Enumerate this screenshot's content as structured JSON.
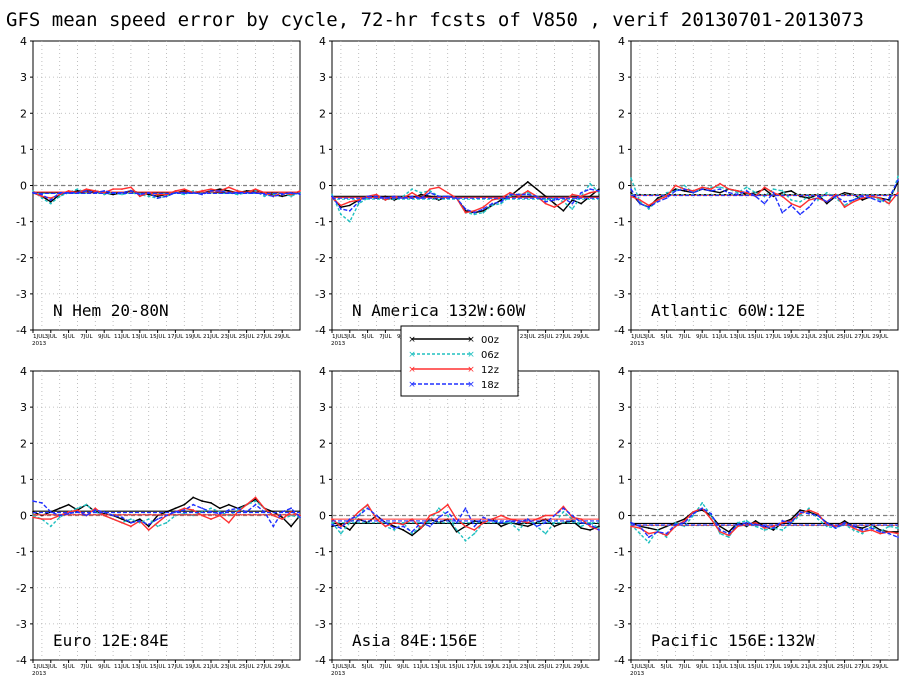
{
  "title": "GFS mean speed error by cycle, 72-hr fcsts of V850 , verif 20130701-2013073",
  "chart_data": {
    "type": "line",
    "ylim": [
      -4,
      4
    ],
    "yticks": [
      -4,
      -3,
      -2,
      -1,
      0,
      1,
      2,
      3,
      4
    ],
    "xlim": [
      1,
      31
    ],
    "xtick_labels": [
      "1JUL",
      "3JUL",
      "5JUL",
      "7JUL",
      "9JUL",
      "11JUL",
      "13JUL",
      "15JUL",
      "17JUL",
      "19JUL",
      "21JUL",
      "23JUL",
      "25JUL",
      "27JUL",
      "29JUL"
    ],
    "xtick_year": "2013",
    "grid": true,
    "legend_position": "center-between-top-and-bottom-rows",
    "series_meta": [
      {
        "name": "00z",
        "color": "#000000",
        "dash": "none",
        "mean_dash": "none"
      },
      {
        "name": "06z",
        "color": "#20c0c0",
        "dash": "3,2",
        "mean_dash": "3,2"
      },
      {
        "name": "12z",
        "color": "#ff3030",
        "dash": "none",
        "mean_dash": "none"
      },
      {
        "name": "18z",
        "color": "#2030ff",
        "dash": "4,2",
        "mean_dash": "4,2"
      }
    ],
    "panels": [
      {
        "region": "N Hem 20-80N",
        "series": [
          {
            "name": "00z",
            "values": [
              -0.2,
              -0.3,
              -0.45,
              -0.25,
              -0.2,
              -0.15,
              -0.15,
              -0.15,
              -0.2,
              -0.25,
              -0.2,
              -0.15,
              -0.2,
              -0.25,
              -0.3,
              -0.25,
              -0.2,
              -0.15,
              -0.2,
              -0.2,
              -0.15,
              -0.1,
              -0.15,
              -0.2,
              -0.15,
              -0.15,
              -0.2,
              -0.25,
              -0.3,
              -0.25,
              -0.2
            ],
            "mean": -0.2
          },
          {
            "name": "06z",
            "values": [
              -0.15,
              -0.35,
              -0.5,
              -0.3,
              -0.2,
              -0.1,
              -0.2,
              -0.15,
              -0.25,
              -0.2,
              -0.25,
              -0.2,
              -0.25,
              -0.3,
              -0.35,
              -0.3,
              -0.2,
              -0.25,
              -0.15,
              -0.2,
              -0.2,
              -0.15,
              -0.2,
              -0.25,
              -0.2,
              -0.15,
              -0.3,
              -0.25,
              -0.2,
              -0.3,
              -0.2
            ],
            "mean": -0.22
          },
          {
            "name": "12z",
            "values": [
              -0.2,
              -0.3,
              -0.35,
              -0.25,
              -0.15,
              -0.2,
              -0.1,
              -0.15,
              -0.2,
              -0.1,
              -0.1,
              -0.05,
              -0.3,
              -0.2,
              -0.25,
              -0.25,
              -0.15,
              -0.1,
              -0.2,
              -0.15,
              -0.1,
              -0.15,
              -0.05,
              -0.15,
              -0.2,
              -0.1,
              -0.2,
              -0.3,
              -0.2,
              -0.25,
              -0.15
            ],
            "mean": -0.18
          },
          {
            "name": "18z",
            "values": [
              -0.2,
              -0.25,
              -0.4,
              -0.2,
              -0.2,
              -0.2,
              -0.15,
              -0.2,
              -0.15,
              -0.2,
              -0.2,
              -0.15,
              -0.25,
              -0.2,
              -0.35,
              -0.3,
              -0.2,
              -0.2,
              -0.2,
              -0.25,
              -0.15,
              -0.15,
              -0.2,
              -0.2,
              -0.2,
              -0.2,
              -0.25,
              -0.3,
              -0.25,
              -0.2,
              -0.25
            ],
            "mean": -0.22
          }
        ]
      },
      {
        "region": "N America 132W:60W",
        "series": [
          {
            "name": "00z",
            "values": [
              -0.3,
              -0.6,
              -0.55,
              -0.4,
              -0.3,
              -0.35,
              -0.3,
              -0.4,
              -0.3,
              -0.35,
              -0.25,
              -0.3,
              -0.4,
              -0.3,
              -0.35,
              -0.7,
              -0.75,
              -0.7,
              -0.55,
              -0.4,
              -0.3,
              -0.1,
              0.1,
              -0.1,
              -0.3,
              -0.5,
              -0.7,
              -0.4,
              -0.5,
              -0.3,
              -0.1
            ],
            "mean": -0.3
          },
          {
            "name": "06z",
            "values": [
              -0.25,
              -0.8,
              -1.0,
              -0.5,
              -0.35,
              -0.3,
              -0.4,
              -0.35,
              -0.3,
              -0.1,
              -0.2,
              -0.15,
              -0.3,
              -0.3,
              -0.35,
              -0.75,
              -0.8,
              -0.75,
              -0.55,
              -0.5,
              -0.3,
              -0.25,
              -0.2,
              -0.3,
              -0.4,
              -0.35,
              -0.45,
              -0.65,
              -0.3,
              0.05,
              -0.2
            ],
            "mean": -0.38
          },
          {
            "name": "12z",
            "values": [
              -0.35,
              -0.55,
              -0.45,
              -0.4,
              -0.3,
              -0.25,
              -0.4,
              -0.3,
              -0.35,
              -0.2,
              -0.35,
              -0.1,
              -0.05,
              -0.2,
              -0.35,
              -0.75,
              -0.7,
              -0.6,
              -0.4,
              -0.35,
              -0.2,
              -0.3,
              -0.15,
              -0.3,
              -0.5,
              -0.6,
              -0.45,
              -0.25,
              -0.3,
              -0.2,
              -0.15
            ],
            "mean": -0.33
          },
          {
            "name": "18z",
            "values": [
              -0.3,
              -0.65,
              -0.7,
              -0.45,
              -0.3,
              -0.3,
              -0.35,
              -0.3,
              -0.35,
              -0.3,
              -0.35,
              -0.2,
              -0.3,
              -0.3,
              -0.35,
              -0.65,
              -0.75,
              -0.65,
              -0.5,
              -0.45,
              -0.25,
              -0.25,
              -0.25,
              -0.3,
              -0.45,
              -0.4,
              -0.35,
              -0.5,
              -0.2,
              -0.1,
              -0.15
            ],
            "mean": -0.35
          }
        ]
      },
      {
        "region": "Atlantic 60W:12E",
        "series": [
          {
            "name": "00z",
            "values": [
              -0.2,
              -0.5,
              -0.6,
              -0.35,
              -0.25,
              -0.1,
              -0.15,
              -0.2,
              -0.1,
              -0.15,
              -0.2,
              -0.1,
              -0.15,
              -0.25,
              -0.2,
              -0.1,
              -0.3,
              -0.2,
              -0.15,
              -0.3,
              -0.35,
              -0.25,
              -0.5,
              -0.3,
              -0.2,
              -0.25,
              -0.4,
              -0.3,
              -0.35,
              -0.4,
              0.1
            ],
            "mean": -0.25
          },
          {
            "name": "06z",
            "values": [
              0.2,
              -0.45,
              -0.65,
              -0.4,
              -0.2,
              -0.15,
              0.0,
              -0.2,
              -0.1,
              -0.05,
              -0.05,
              -0.1,
              -0.2,
              -0.05,
              -0.2,
              -0.3,
              -0.1,
              -0.15,
              -0.4,
              -0.45,
              -0.3,
              -0.4,
              -0.2,
              -0.35,
              -0.55,
              -0.4,
              -0.25,
              -0.3,
              -0.4,
              -0.5,
              0.25
            ],
            "mean": -0.25
          },
          {
            "name": "12z",
            "values": [
              -0.3,
              -0.4,
              -0.55,
              -0.4,
              -0.3,
              0.0,
              -0.1,
              -0.15,
              -0.05,
              -0.1,
              0.05,
              -0.1,
              -0.15,
              -0.2,
              -0.3,
              -0.05,
              -0.2,
              -0.3,
              -0.5,
              -0.6,
              -0.4,
              -0.35,
              -0.45,
              -0.25,
              -0.6,
              -0.45,
              -0.35,
              -0.3,
              -0.35,
              -0.5,
              -0.2
            ],
            "mean": -0.27
          },
          {
            "name": "18z",
            "values": [
              -0.1,
              -0.5,
              -0.6,
              -0.45,
              -0.35,
              -0.15,
              -0.1,
              -0.2,
              -0.1,
              -0.15,
              -0.1,
              -0.2,
              -0.25,
              -0.15,
              -0.3,
              -0.5,
              -0.2,
              -0.75,
              -0.55,
              -0.8,
              -0.6,
              -0.3,
              -0.45,
              -0.3,
              -0.45,
              -0.4,
              -0.3,
              -0.35,
              -0.45,
              -0.35,
              0.15
            ],
            "mean": -0.28
          }
        ]
      },
      {
        "region": "Euro 12E:84E",
        "series": [
          {
            "name": "00z",
            "values": [
              0.1,
              0.0,
              0.1,
              0.2,
              0.3,
              0.15,
              0.3,
              0.1,
              0.05,
              0.0,
              -0.1,
              -0.2,
              -0.1,
              -0.3,
              0.0,
              0.1,
              0.2,
              0.3,
              0.5,
              0.4,
              0.35,
              0.2,
              0.3,
              0.2,
              0.3,
              0.45,
              0.2,
              0.1,
              -0.05,
              -0.3,
              0.0
            ],
            "mean": 0.12
          },
          {
            "name": "06z",
            "values": [
              0.0,
              -0.1,
              -0.3,
              -0.05,
              0.1,
              0.2,
              0.3,
              0.1,
              0.0,
              -0.1,
              -0.2,
              -0.1,
              -0.2,
              -0.1,
              -0.3,
              -0.2,
              0.0,
              0.05,
              0.0,
              0.1,
              0.2,
              0.1,
              0.0,
              0.15,
              0.3,
              0.4,
              0.2,
              0.0,
              -0.1,
              0.0,
              -0.05
            ],
            "mean": 0.03
          },
          {
            "name": "12z",
            "values": [
              -0.05,
              -0.1,
              -0.1,
              0.0,
              0.1,
              0.15,
              0.0,
              0.2,
              0.0,
              -0.1,
              -0.2,
              -0.3,
              -0.15,
              -0.4,
              -0.2,
              0.0,
              0.1,
              0.2,
              0.15,
              0.0,
              -0.1,
              0.0,
              -0.2,
              0.1,
              0.3,
              0.5,
              0.2,
              0.0,
              -0.1,
              0.1,
              0.0
            ],
            "mean": 0.02
          },
          {
            "name": "18z",
            "values": [
              0.4,
              0.35,
              0.1,
              0.0,
              0.05,
              0.1,
              0.0,
              0.15,
              0.1,
              0.0,
              -0.05,
              -0.2,
              -0.15,
              -0.25,
              -0.1,
              0.0,
              0.1,
              0.15,
              0.3,
              0.2,
              0.1,
              0.05,
              0.15,
              0.2,
              0.1,
              0.3,
              0.1,
              -0.3,
              0.1,
              0.2,
              -0.05
            ],
            "mean": 0.08
          }
        ]
      },
      {
        "region": "Asia 84E:156E",
        "series": [
          {
            "name": "00z",
            "values": [
              -0.3,
              -0.25,
              -0.4,
              -0.1,
              -0.2,
              0.0,
              -0.2,
              -0.3,
              -0.4,
              -0.55,
              -0.35,
              -0.1,
              -0.2,
              -0.1,
              -0.45,
              -0.3,
              -0.15,
              -0.2,
              -0.1,
              -0.3,
              -0.2,
              -0.25,
              -0.3,
              -0.2,
              -0.1,
              -0.3,
              -0.2,
              -0.15,
              -0.35,
              -0.4,
              -0.3
            ],
            "mean": -0.22
          },
          {
            "name": "06z",
            "values": [
              -0.2,
              -0.5,
              -0.2,
              0.0,
              0.3,
              -0.1,
              -0.3,
              -0.4,
              -0.2,
              -0.5,
              -0.3,
              -0.15,
              0.2,
              0.0,
              -0.4,
              -0.7,
              -0.5,
              -0.2,
              -0.1,
              -0.2,
              -0.2,
              -0.4,
              -0.1,
              -0.3,
              -0.5,
              -0.2,
              0.1,
              -0.1,
              -0.3,
              -0.2,
              -0.35
            ],
            "mean": -0.2
          },
          {
            "name": "12z",
            "values": [
              -0.1,
              -0.3,
              -0.15,
              0.1,
              0.3,
              -0.1,
              -0.3,
              -0.2,
              -0.25,
              -0.1,
              -0.35,
              0.0,
              0.1,
              0.3,
              -0.1,
              -0.3,
              -0.4,
              -0.2,
              -0.1,
              0.0,
              -0.1,
              -0.15,
              -0.2,
              -0.1,
              0.0,
              0.0,
              0.25,
              -0.05,
              -0.1,
              -0.3,
              -0.4
            ],
            "mean": -0.1
          },
          {
            "name": "18z",
            "values": [
              -0.25,
              -0.35,
              -0.1,
              0.0,
              0.2,
              0.0,
              -0.2,
              -0.35,
              -0.3,
              -0.45,
              -0.2,
              -0.3,
              -0.05,
              0.1,
              -0.2,
              0.2,
              -0.3,
              -0.05,
              -0.15,
              -0.2,
              -0.15,
              -0.2,
              -0.1,
              -0.3,
              -0.2,
              0.0,
              0.2,
              0.0,
              -0.2,
              -0.25,
              -0.4
            ],
            "mean": -0.15
          }
        ]
      },
      {
        "region": "Pacific 156E:132W",
        "series": [
          {
            "name": "00z",
            "values": [
              -0.2,
              -0.3,
              -0.35,
              -0.4,
              -0.3,
              -0.2,
              -0.1,
              0.1,
              0.15,
              0.0,
              -0.3,
              -0.45,
              -0.2,
              -0.3,
              -0.15,
              -0.3,
              -0.4,
              -0.2,
              -0.1,
              0.15,
              0.1,
              0.0,
              -0.2,
              -0.3,
              -0.15,
              -0.3,
              -0.35,
              -0.25,
              -0.4,
              -0.45,
              -0.45
            ],
            "mean": -0.22
          },
          {
            "name": "06z",
            "values": [
              -0.25,
              -0.5,
              -0.75,
              -0.4,
              -0.6,
              -0.2,
              -0.3,
              0.0,
              0.35,
              0.0,
              -0.5,
              -0.6,
              -0.2,
              -0.15,
              -0.3,
              -0.4,
              -0.35,
              -0.4,
              -0.2,
              0.0,
              0.2,
              -0.1,
              -0.3,
              -0.35,
              -0.25,
              -0.4,
              -0.5,
              -0.3,
              -0.45,
              -0.3,
              -0.35
            ],
            "mean": -0.28
          },
          {
            "name": "12z",
            "values": [
              -0.3,
              -0.35,
              -0.5,
              -0.45,
              -0.55,
              -0.3,
              -0.15,
              0.1,
              0.2,
              -0.1,
              -0.45,
              -0.55,
              -0.3,
              -0.25,
              -0.2,
              -0.35,
              -0.3,
              -0.2,
              -0.15,
              0.05,
              0.15,
              0.05,
              -0.25,
              -0.3,
              -0.2,
              -0.35,
              -0.45,
              -0.4,
              -0.5,
              -0.45,
              -0.5
            ],
            "mean": -0.27
          },
          {
            "name": "18z",
            "values": [
              -0.2,
              -0.3,
              -0.6,
              -0.45,
              -0.5,
              -0.25,
              -0.2,
              0.05,
              0.2,
              0.05,
              -0.4,
              -0.5,
              -0.25,
              -0.2,
              -0.25,
              -0.3,
              -0.35,
              -0.15,
              -0.2,
              0.1,
              0.05,
              0.0,
              -0.2,
              -0.35,
              -0.2,
              -0.3,
              -0.4,
              -0.35,
              -0.45,
              -0.5,
              -0.6
            ],
            "mean": -0.26
          }
        ]
      }
    ]
  }
}
